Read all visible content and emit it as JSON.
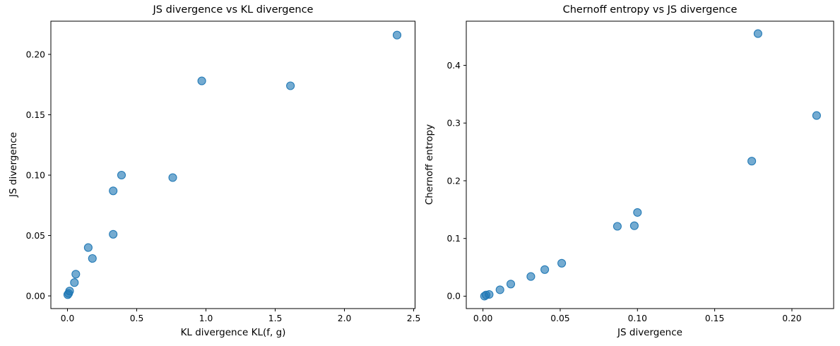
{
  "figure": {
    "background": "#ffffff",
    "text_color": "#000000",
    "spine_color": "#000000"
  },
  "chart_data": [
    {
      "type": "scatter",
      "title": "JS divergence vs KL divergence",
      "xlabel": "KL divergence KL(f, g)",
      "ylabel": "JS divergence",
      "xlim": [
        -0.12,
        2.51
      ],
      "ylim": [
        -0.0105,
        0.2275
      ],
      "xticks": {
        "values": [
          0.0,
          0.5,
          1.0,
          1.5,
          2.0,
          2.5
        ],
        "labels": [
          "0.0",
          "0.5",
          "1.0",
          "1.5",
          "2.0",
          "2.5"
        ]
      },
      "yticks": {
        "values": [
          0.0,
          0.05,
          0.1,
          0.15,
          0.2
        ],
        "labels": [
          "0.00",
          "0.05",
          "0.10",
          "0.15",
          "0.20"
        ]
      },
      "grid": false,
      "legend": null,
      "marker": {
        "color": "#1f77b4",
        "alpha": 0.7,
        "radius": 5.5
      },
      "points": [
        [
          0.002,
          0.001
        ],
        [
          0.008,
          0.002
        ],
        [
          0.015,
          0.004
        ],
        [
          0.05,
          0.011
        ],
        [
          0.06,
          0.018
        ],
        [
          0.15,
          0.04
        ],
        [
          0.18,
          0.031
        ],
        [
          0.33,
          0.051
        ],
        [
          0.33,
          0.087
        ],
        [
          0.39,
          0.1
        ],
        [
          0.76,
          0.098
        ],
        [
          0.97,
          0.178
        ],
        [
          1.61,
          0.174
        ],
        [
          2.38,
          0.216
        ]
      ]
    },
    {
      "type": "scatter",
      "title": "Chernoff entropy vs JS divergence",
      "xlabel": "JS divergence",
      "ylabel": "Chernoff entropy",
      "xlim": [
        -0.0108,
        0.227
      ],
      "ylim": [
        -0.0215,
        0.4765
      ],
      "xticks": {
        "values": [
          0.0,
          0.05,
          0.1,
          0.15,
          0.2
        ],
        "labels": [
          "0.00",
          "0.05",
          "0.10",
          "0.15",
          "0.20"
        ]
      },
      "yticks": {
        "values": [
          0.0,
          0.1,
          0.2,
          0.3,
          0.4
        ],
        "labels": [
          "0.0",
          "0.1",
          "0.2",
          "0.3",
          "0.4"
        ]
      },
      "grid": false,
      "legend": null,
      "marker": {
        "color": "#1f77b4",
        "alpha": 0.7,
        "radius": 5.5
      },
      "points": [
        [
          0.001,
          0.0
        ],
        [
          0.002,
          0.002
        ],
        [
          0.004,
          0.003
        ],
        [
          0.011,
          0.011
        ],
        [
          0.018,
          0.021
        ],
        [
          0.031,
          0.034
        ],
        [
          0.04,
          0.046
        ],
        [
          0.051,
          0.057
        ],
        [
          0.087,
          0.121
        ],
        [
          0.098,
          0.122
        ],
        [
          0.1,
          0.145
        ],
        [
          0.174,
          0.234
        ],
        [
          0.178,
          0.455
        ],
        [
          0.216,
          0.313
        ]
      ]
    }
  ]
}
